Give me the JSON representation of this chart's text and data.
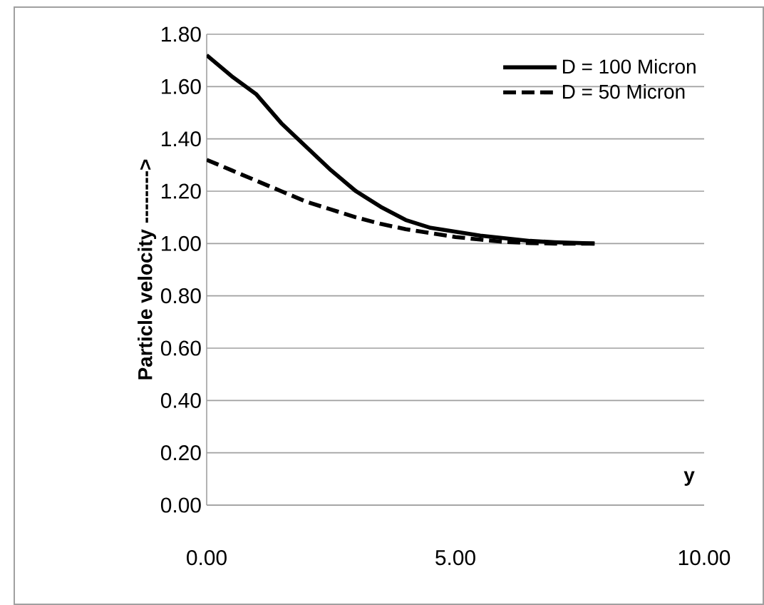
{
  "chart_data": {
    "type": "line",
    "xlabel": "y",
    "ylabel": "Particle velocity -------->",
    "x": [
      0,
      0.5,
      1,
      1.5,
      2,
      2.5,
      3,
      3.5,
      4,
      4.5,
      5,
      5.5,
      6,
      6.5,
      7,
      7.8
    ],
    "series": [
      {
        "name": "D = 100 Micron",
        "color": "#000000",
        "line_style": "solid",
        "values": [
          1.72,
          1.64,
          1.57,
          1.46,
          1.37,
          1.28,
          1.2,
          1.14,
          1.09,
          1.06,
          1.045,
          1.03,
          1.02,
          1.01,
          1.005,
          1.0
        ]
      },
      {
        "name": "D = 50 Micron",
        "color": "#000000",
        "line_style": "dashed",
        "values": [
          1.32,
          1.28,
          1.24,
          1.2,
          1.16,
          1.13,
          1.1,
          1.075,
          1.055,
          1.04,
          1.025,
          1.015,
          1.006,
          1.002,
          1.0,
          1.0
        ]
      }
    ],
    "xlim": [
      0,
      10
    ],
    "xticks": [
      {
        "value": 0,
        "label": "0.00"
      },
      {
        "value": 5,
        "label": "5.00"
      },
      {
        "value": 10,
        "label": "10.00"
      }
    ],
    "ylim": [
      0,
      1.8
    ],
    "yticks": [
      {
        "value": 0,
        "label": "0.00"
      },
      {
        "value": 0.2,
        "label": "0.20"
      },
      {
        "value": 0.4,
        "label": "0.40"
      },
      {
        "value": 0.6,
        "label": "0.60"
      },
      {
        "value": 0.8,
        "label": "0.80"
      },
      {
        "value": 1.0,
        "label": "1.00"
      },
      {
        "value": 1.2,
        "label": "1.20"
      },
      {
        "value": 1.4,
        "label": "1.40"
      },
      {
        "value": 1.6,
        "label": "1.60"
      },
      {
        "value": 1.8,
        "label": "1.80"
      }
    ],
    "grid": "y",
    "legend": "top right",
    "marker": "none"
  }
}
